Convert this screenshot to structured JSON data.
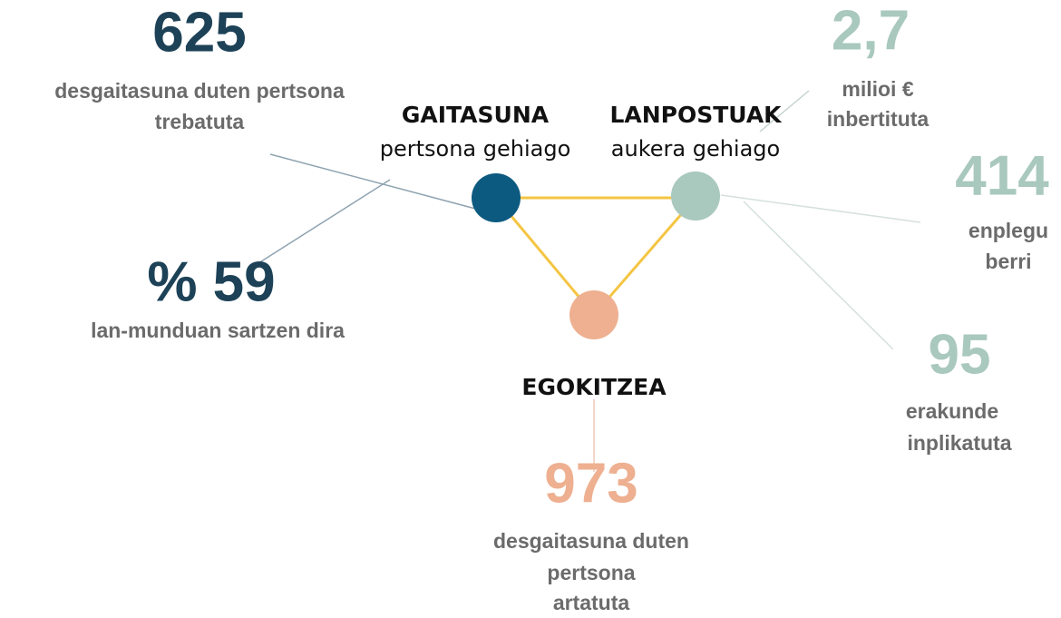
{
  "nodes": [
    {
      "title": "GAITASUNA",
      "subtitle": "pertsona gehiago"
    },
    {
      "title": "LANPOSTUAK",
      "subtitle": "aukera gehiago"
    },
    {
      "title": "EGOKITZEA"
    }
  ],
  "stats": [
    {
      "value": "625",
      "lines": [
        "desgaitasuna duten pertsona",
        "trebatuta"
      ]
    },
    {
      "value": "% 59",
      "lines": [
        "lan-munduan sartzen dira"
      ]
    },
    {
      "value": "2,7",
      "lines": [
        "milioi €",
        "inbertituta"
      ]
    },
    {
      "value": "414",
      "lines": [
        "enplegu",
        "berri"
      ]
    },
    {
      "value": "95",
      "lines": [
        "erakunde",
        "inplikatuta"
      ]
    },
    {
      "value": "973",
      "lines": [
        "desgaitasuna duten",
        "pertsona",
        "artatuta"
      ]
    }
  ]
}
